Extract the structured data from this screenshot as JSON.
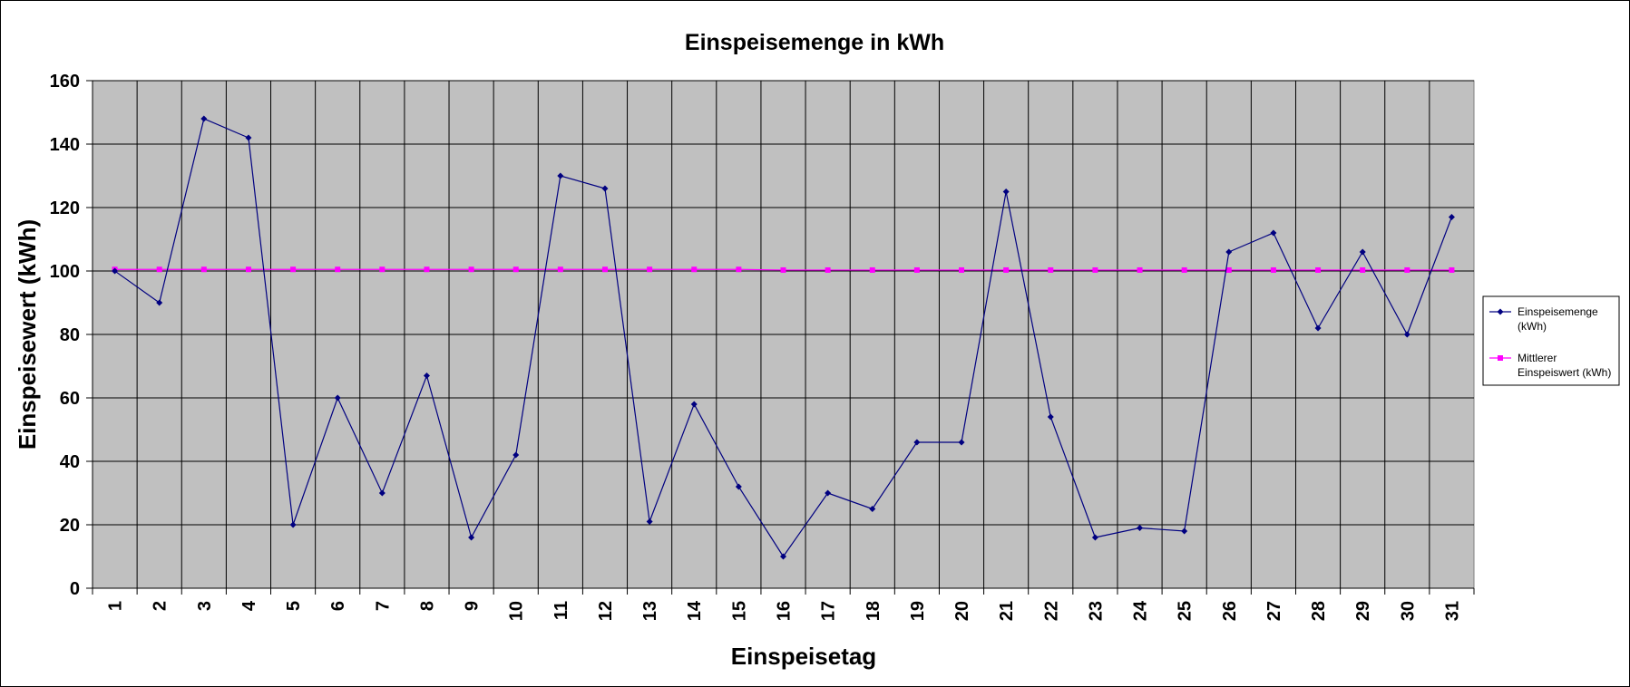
{
  "chart_data": {
    "type": "line",
    "title": "Einspeisemenge in kWh",
    "xlabel": "Einspeisetag",
    "ylabel": "Einspeisewert  (kWh)",
    "ylim": [
      0,
      160
    ],
    "yticks": [
      0,
      20,
      40,
      60,
      80,
      100,
      120,
      140,
      160
    ],
    "grid": true,
    "legend_position": "right",
    "plot_background": "#c0c0c0",
    "categories": [
      "1",
      "2",
      "3",
      "4",
      "5",
      "6",
      "7",
      "8",
      "9",
      "10",
      "11",
      "12",
      "13",
      "14",
      "15",
      "16",
      "17",
      "18",
      "19",
      "20",
      "21",
      "22",
      "23",
      "24",
      "25",
      "26",
      "27",
      "28",
      "29",
      "30",
      "31"
    ],
    "series": [
      {
        "name": "Einspeisemenge (kWh)",
        "legend_lines": [
          "Einspeisemenge",
          "(kWh)"
        ],
        "color": "#000080",
        "marker": "diamond",
        "values": [
          100,
          90,
          148,
          142,
          20,
          60,
          30,
          67,
          16,
          42,
          130,
          126,
          21,
          58,
          32,
          10,
          30,
          25,
          46,
          46,
          125,
          54,
          16,
          19,
          18,
          106,
          112,
          82,
          106,
          80,
          117
        ]
      },
      {
        "name": "Mittlerer Einspeiswert (kWh)",
        "legend_lines": [
          "Mittlerer",
          "Einspeiswert (kWh)"
        ],
        "color": "#ff00ff",
        "marker": "square",
        "values": [
          100.5,
          100.5,
          100.5,
          100.5,
          100.5,
          100.5,
          100.5,
          100.5,
          100.5,
          100.5,
          100.5,
          100.5,
          100.5,
          100.5,
          100.5,
          100.3,
          100.3,
          100.3,
          100.3,
          100.3,
          100.3,
          100.3,
          100.3,
          100.3,
          100.3,
          100.3,
          100.3,
          100.3,
          100.3,
          100.3,
          100.3
        ]
      }
    ]
  }
}
